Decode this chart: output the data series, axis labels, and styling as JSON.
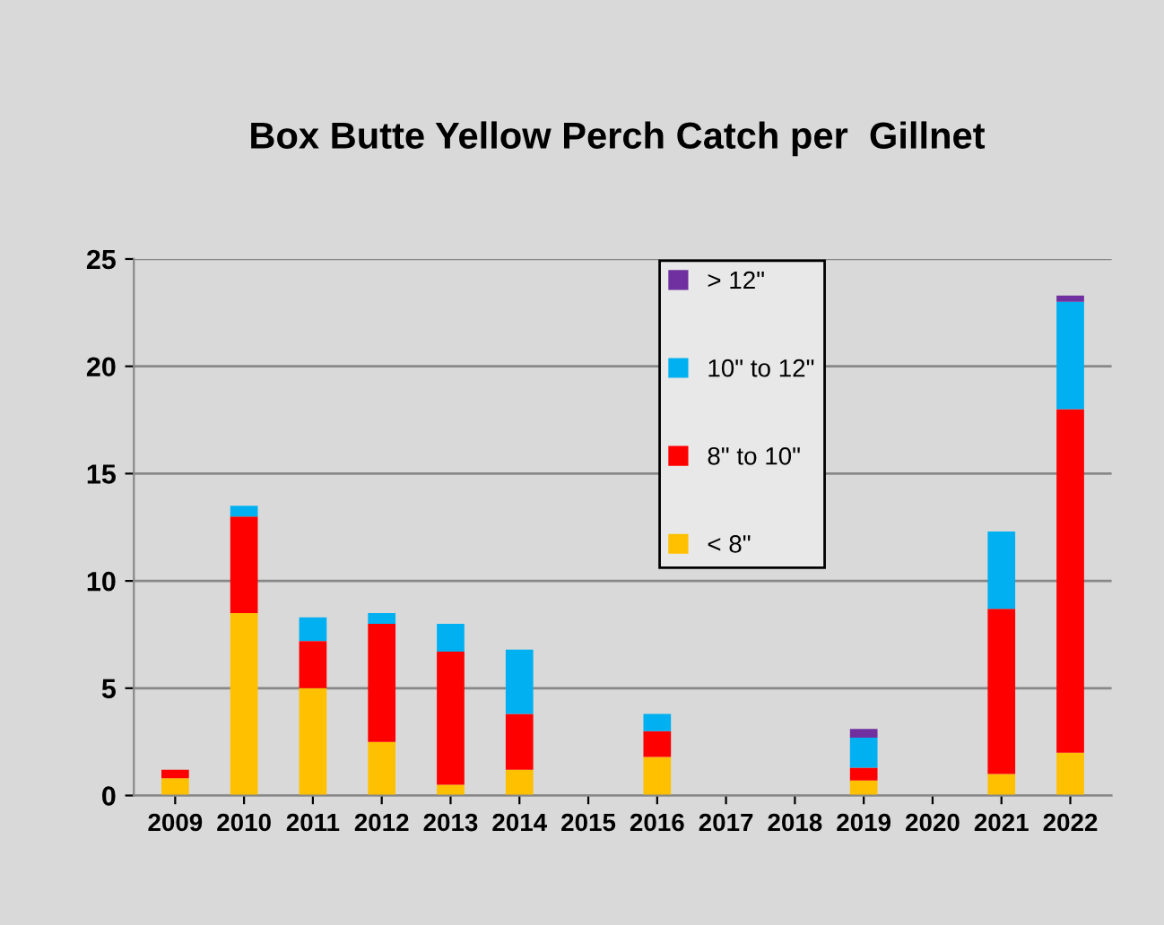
{
  "chart_data": {
    "type": "bar",
    "title": "Box Butte Yellow Perch Catch per  Gillnet",
    "categories": [
      "2009",
      "2010",
      "2011",
      "2012",
      "2013",
      "2014",
      "2015",
      "2016",
      "2017",
      "2018",
      "2019",
      "2020",
      "2021",
      "2022"
    ],
    "stacked": true,
    "series": [
      {
        "name": "< 8\"",
        "color": "#ffc000",
        "values": [
          0.8,
          8.5,
          5.0,
          2.5,
          0.5,
          1.2,
          0,
          1.8,
          0,
          0,
          0.7,
          0,
          1.0,
          2.0
        ]
      },
      {
        "name": "8\" to 10\"",
        "color": "#ff0000",
        "values": [
          0.4,
          4.5,
          2.2,
          5.5,
          6.2,
          2.6,
          0,
          1.2,
          0,
          0,
          0.6,
          0,
          7.7,
          16.0
        ]
      },
      {
        "name": "10\" to 12\"",
        "color": "#00b0f0",
        "values": [
          0,
          0.5,
          1.1,
          0.5,
          1.3,
          3.0,
          0,
          0.8,
          0,
          0,
          1.4,
          0,
          3.6,
          5.0
        ]
      },
      {
        "name": "> 12\"",
        "color": "#7030a0",
        "values": [
          0,
          0,
          0,
          0,
          0,
          0,
          0,
          0,
          0,
          0,
          0.4,
          0,
          0,
          0.3
        ]
      }
    ],
    "ylim": [
      0,
      25
    ],
    "yticks": [
      0,
      5,
      10,
      15,
      20,
      25
    ],
    "grid": "y",
    "legend": "top"
  }
}
